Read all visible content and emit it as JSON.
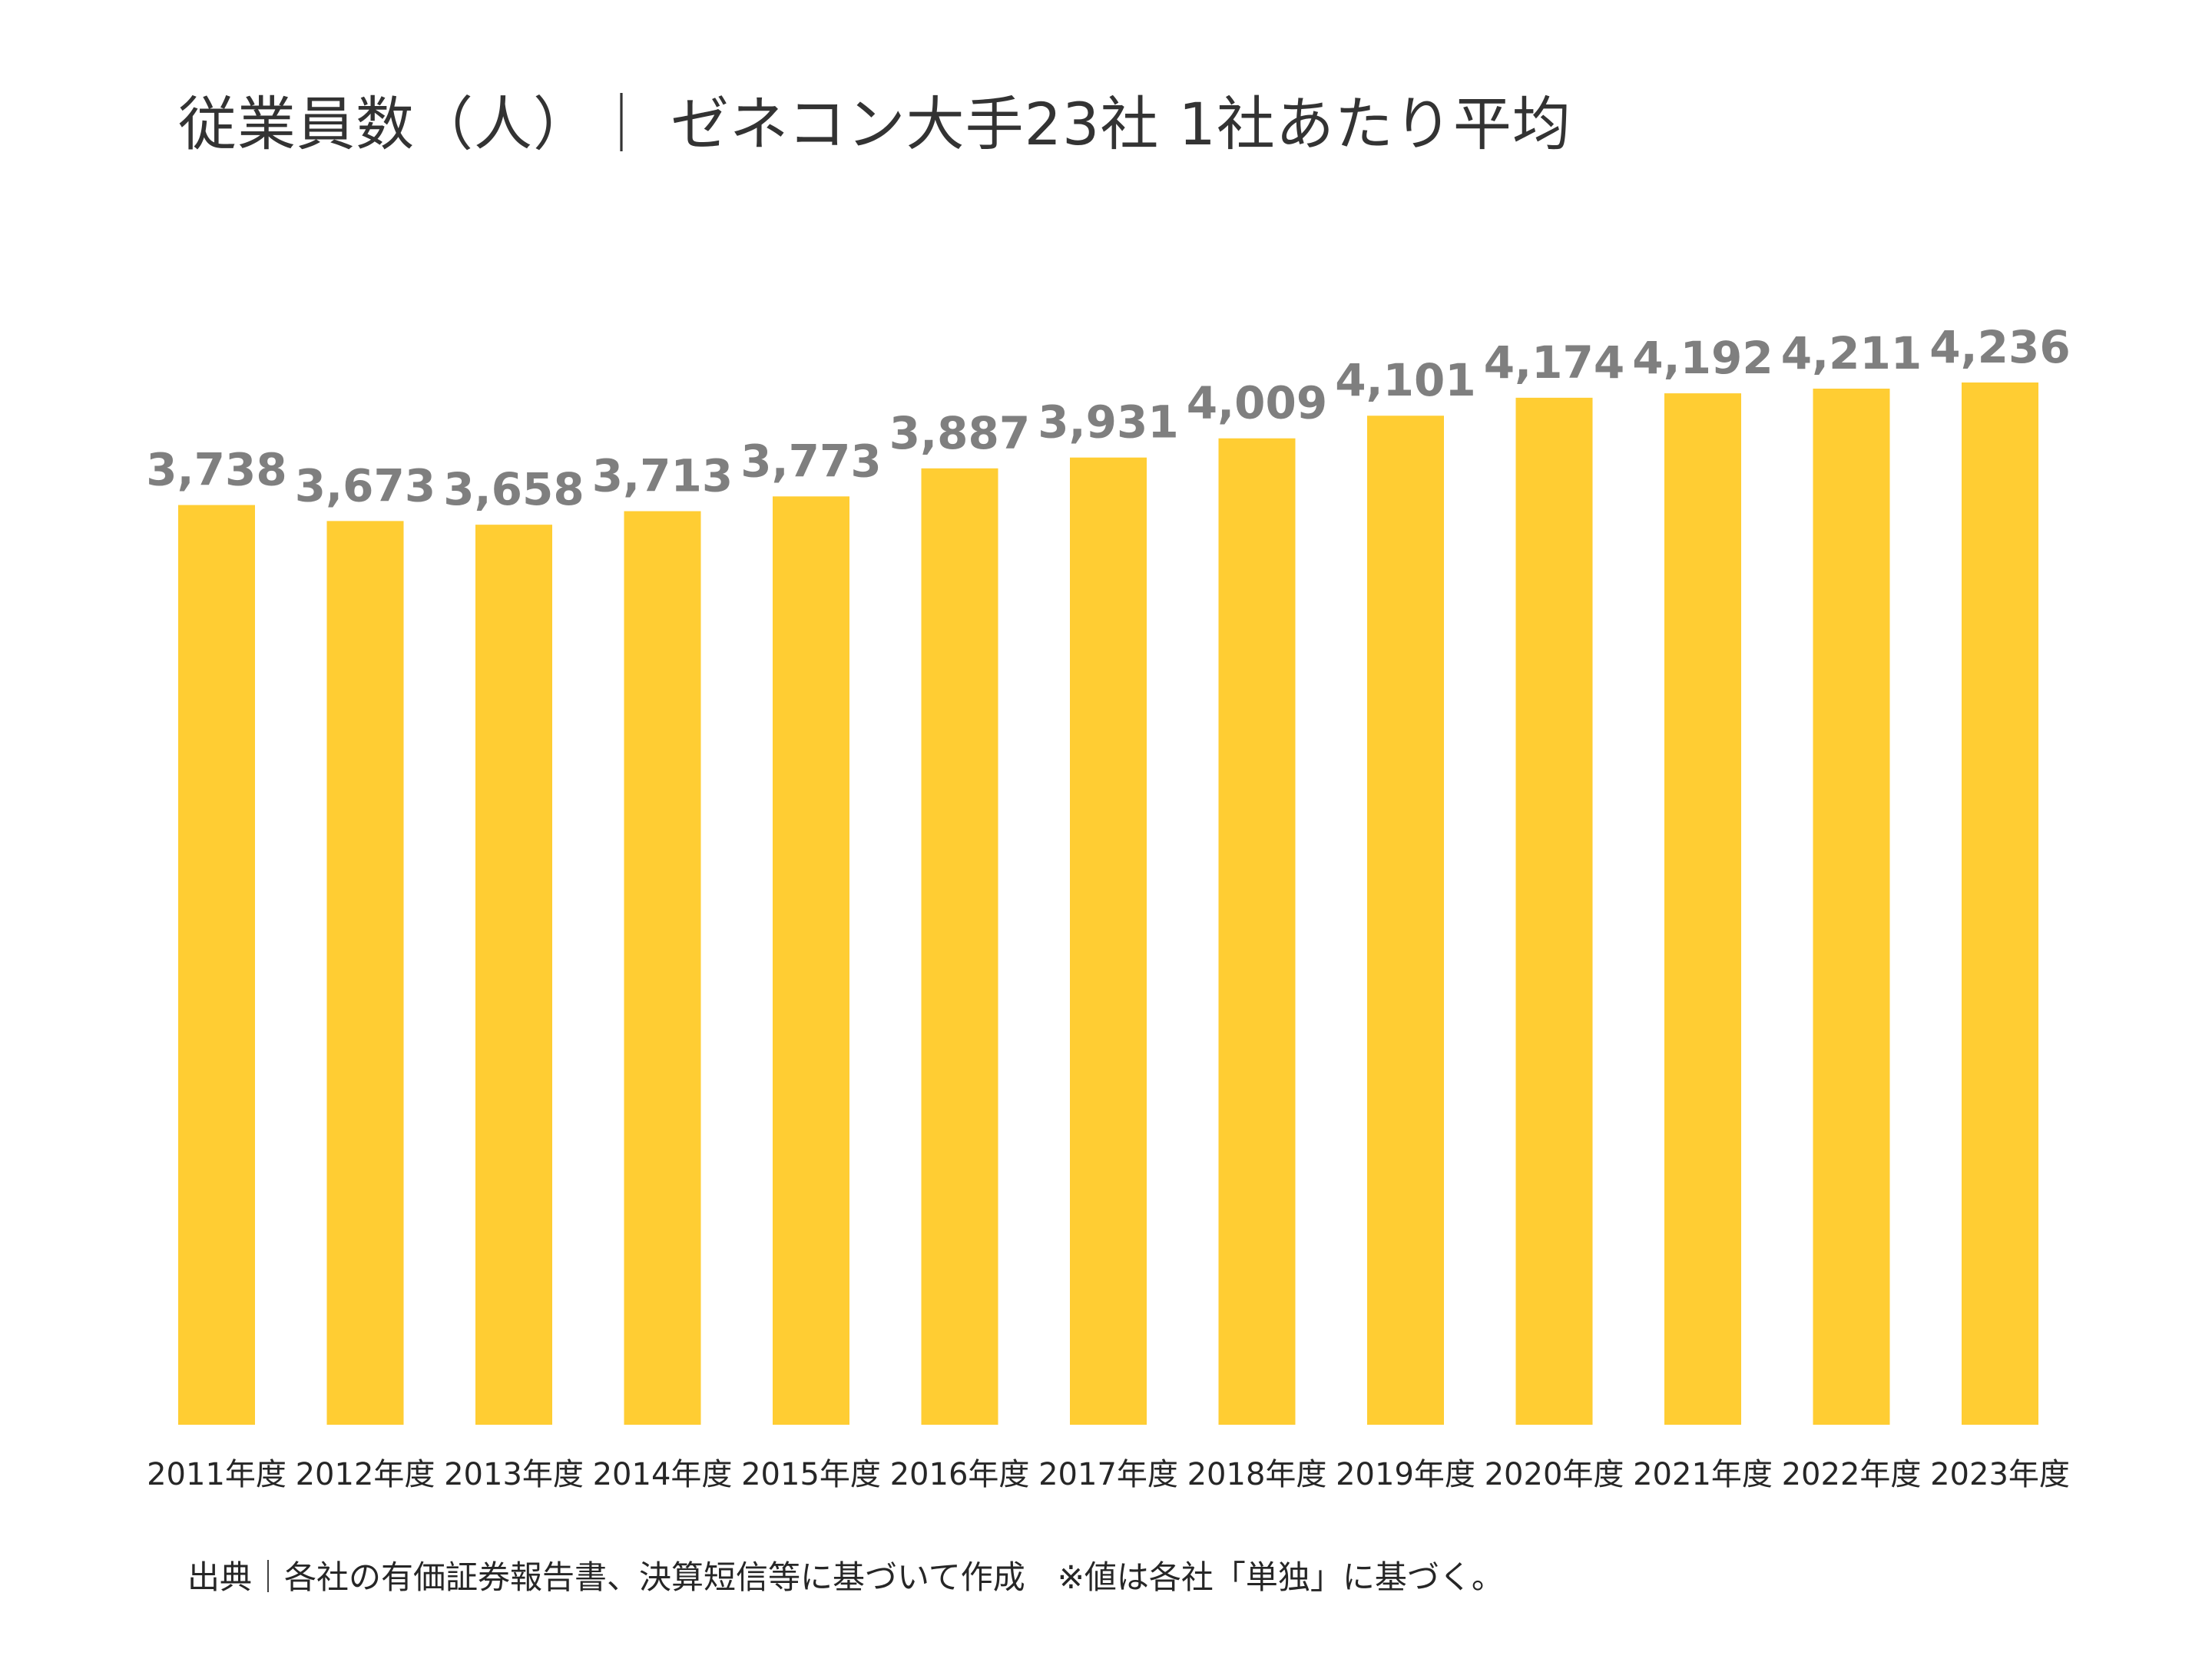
{
  "chart_data": {
    "type": "bar",
    "title": "従業員数（人）｜ ゼネコン大手23社  1社あたり平均",
    "categories": [
      "2011年度",
      "2012年度",
      "2013年度",
      "2014年度",
      "2015年度",
      "2016年度",
      "2017年度",
      "2018年度",
      "2019年度",
      "2020年度",
      "2021年度",
      "2022年度",
      "2023年度"
    ],
    "values": [
      3738,
      3673,
      3658,
      3713,
      3773,
      3887,
      3931,
      4009,
      4101,
      4174,
      4192,
      4211,
      4236
    ],
    "value_labels": [
      "3,738",
      "3,673",
      "3,658",
      "3,713",
      "3,773",
      "3,887",
      "3,931",
      "4,009",
      "4,101",
      "4,174",
      "4,192",
      "4,211",
      "4,236"
    ],
    "ylim": [
      0,
      4236
    ],
    "grid": false,
    "legend": "none",
    "bar_color": "#FFCD33",
    "label_color": "#7F7F7F"
  },
  "source_note": "出典｜各社の有価証券報告書、決算短信等に基づいて作成　※値は各社「単独」に基づく。"
}
